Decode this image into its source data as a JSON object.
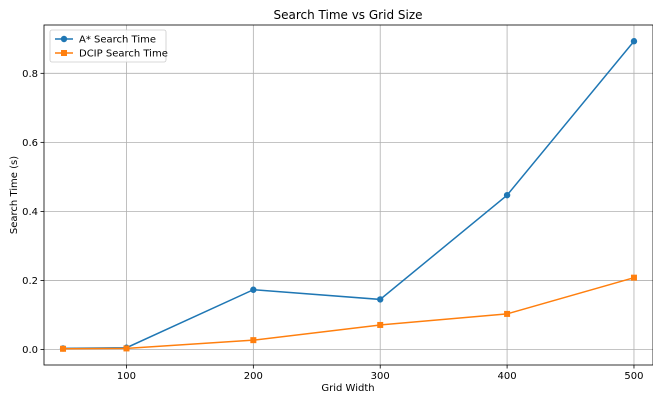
{
  "chart_data": {
    "type": "line",
    "title": "Search Time vs Grid Size",
    "xlabel": "Grid Width",
    "ylabel": "Search Time (s)",
    "x": [
      50,
      100,
      200,
      300,
      400,
      500
    ],
    "xlim": [
      35,
      515
    ],
    "ylim": [
      -0.045,
      0.94
    ],
    "xticks": [
      100,
      200,
      300,
      400,
      500
    ],
    "xtick_labels": [
      "100",
      "200",
      "300",
      "400",
      "500"
    ],
    "yticks": [
      0.0,
      0.2,
      0.4,
      0.6,
      0.8
    ],
    "ytick_labels": [
      "0.0",
      "0.2",
      "0.4",
      "0.6",
      "0.8"
    ],
    "grid": true,
    "legend_position": "top-left",
    "series": [
      {
        "name": "A* Search Time",
        "color": "#1f77b4",
        "marker": "circle",
        "values": [
          0.003,
          0.005,
          0.173,
          0.145,
          0.447,
          0.893
        ]
      },
      {
        "name": "DCIP Search Time",
        "color": "#ff7f0e",
        "marker": "square",
        "values": [
          0.002,
          0.003,
          0.027,
          0.071,
          0.103,
          0.208
        ]
      }
    ]
  }
}
